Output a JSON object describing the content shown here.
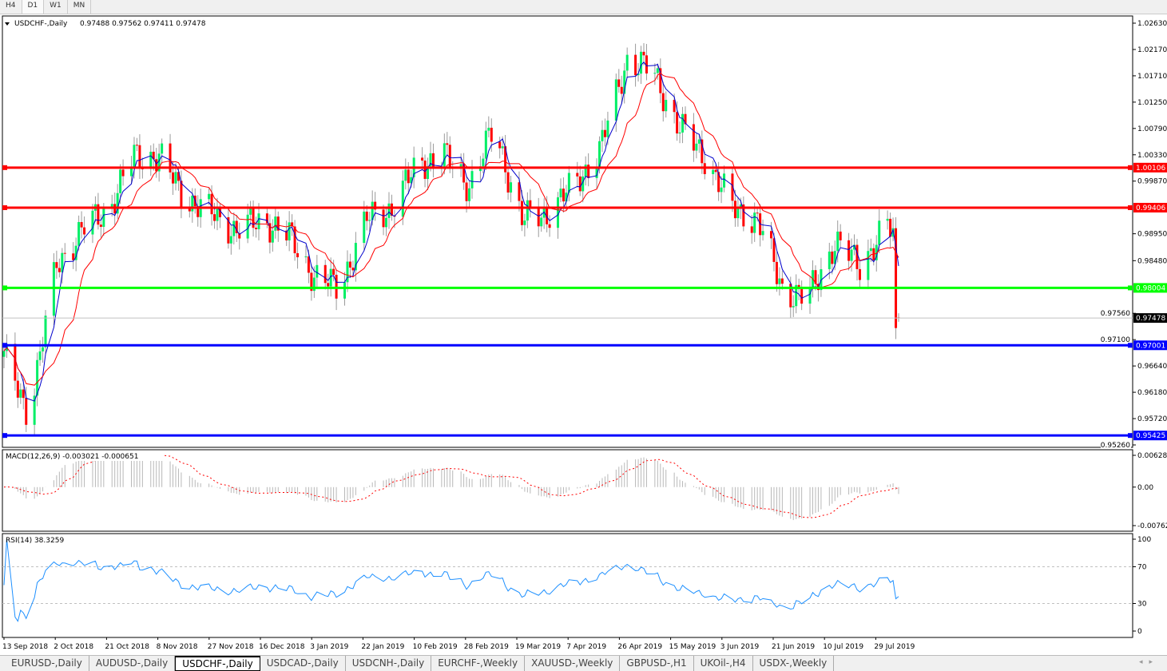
{
  "timeframes": [
    {
      "label": "H4"
    },
    {
      "label": "D1",
      "active": true
    },
    {
      "label": "W1"
    },
    {
      "label": "MN"
    }
  ],
  "header": {
    "symbol": "USDCHF-,Daily",
    "ohlc": "0.97488 0.97562 0.97411 0.97478"
  },
  "tabs": [
    {
      "label": "EURUSD-,Daily"
    },
    {
      "label": "AUDUSD-,Daily"
    },
    {
      "label": "USDCHF-,Daily",
      "active": true
    },
    {
      "label": "USDCAD-,Daily"
    },
    {
      "label": "USDCNH-,Daily"
    },
    {
      "label": "EURCHF-,Weekly"
    },
    {
      "label": "XAUUSD-,Weekly"
    },
    {
      "label": "GBPUSD-,H1"
    },
    {
      "label": "UKOil-,H4"
    },
    {
      "label": "USDX-,Weekly"
    }
  ],
  "chart_data": {
    "type": "candlestick",
    "symbol": "USDCHF-,Daily",
    "last_candle": {
      "open": 0.97488,
      "high": 0.97562,
      "low": 0.97411,
      "close": 0.97478
    },
    "ylim": [
      0.9526,
      1.0263
    ],
    "y_ticks": [
      "1.02630",
      "1.02170",
      "1.01710",
      "1.01250",
      "1.00790",
      "1.00330",
      "0.99870",
      "0.98950",
      "0.98480",
      "0.97560",
      "0.97100",
      "0.96640",
      "0.96180",
      "0.95720",
      "0.95260"
    ],
    "x_ticks": [
      "13 Sep 2018",
      "2 Oct 2018",
      "21 Oct 2018",
      "8 Nov 2018",
      "27 Nov 2018",
      "16 Dec 2018",
      "3 Jan 2019",
      "22 Jan 2019",
      "10 Feb 2019",
      "28 Feb 2019",
      "19 Mar 2019",
      "7 Apr 2019",
      "26 Apr 2019",
      "15 May 2019",
      "3 Jun 2019",
      "21 Jun 2019",
      "10 Jul 2019",
      "29 Jul 2019"
    ],
    "approx_closes": [
      [
        "2018-09-13",
        0.968
      ],
      [
        "2018-09-22",
        0.958
      ],
      [
        "2018-10-02",
        0.984
      ],
      [
        "2018-10-11",
        0.99
      ],
      [
        "2018-10-21",
        0.994
      ],
      [
        "2018-10-30",
        1.003
      ],
      [
        "2018-11-08",
        1.003
      ],
      [
        "2018-11-17",
        0.996
      ],
      [
        "2018-11-27",
        0.993
      ],
      [
        "2018-12-06",
        0.99
      ],
      [
        "2018-12-16",
        0.992
      ],
      [
        "2018-12-25",
        0.989
      ],
      [
        "2019-01-03",
        0.982
      ],
      [
        "2019-01-12",
        0.98
      ],
      [
        "2019-01-22",
        0.992
      ],
      [
        "2019-01-31",
        0.994
      ],
      [
        "2019-02-10",
        1.002
      ],
      [
        "2019-02-19",
        1.003
      ],
      [
        "2019-02-28",
        0.998
      ],
      [
        "2019-03-09",
        1.008
      ],
      [
        "2019-03-19",
        0.992
      ],
      [
        "2019-03-28",
        0.993
      ],
      [
        "2019-04-07",
        0.998
      ],
      [
        "2019-04-16",
        1.004
      ],
      [
        "2019-04-26",
        1.02
      ],
      [
        "2019-05-05",
        1.018
      ],
      [
        "2019-05-15",
        1.008
      ],
      [
        "2019-05-24",
        1.003
      ],
      [
        "2019-06-03",
        0.994
      ],
      [
        "2019-06-12",
        0.992
      ],
      [
        "2019-06-21",
        0.98
      ],
      [
        "2019-06-30",
        0.978
      ],
      [
        "2019-07-10",
        0.988
      ],
      [
        "2019-07-19",
        0.984
      ],
      [
        "2019-07-29",
        0.991
      ],
      [
        "2019-07-31",
        0.989
      ],
      [
        "2019-08-01",
        0.971
      ],
      [
        "2019-08-02",
        0.97478
      ]
    ],
    "moving_averages": [
      {
        "color": "#0000cc"
      },
      {
        "color": "#ff0000"
      }
    ],
    "horizontal_lines": [
      {
        "price": 1.00106,
        "label": "1.00106",
        "color": "#ff0000"
      },
      {
        "price": 0.99406,
        "label": "0.99406",
        "color": "#ff0000"
      },
      {
        "price": 0.98004,
        "label": "0.98004",
        "color": "#00ff00"
      },
      {
        "price": 0.97001,
        "label": "0.97001",
        "color": "#0000ff"
      },
      {
        "price": 0.95425,
        "label": "0.95425",
        "color": "#0000ff"
      }
    ],
    "current_price": {
      "price": 0.97478,
      "label": "0.97478"
    },
    "colors": {
      "bull": "#00ee66",
      "bear": "#ff0000"
    },
    "macd": {
      "label": "MACD(12,26,9) -0.003021 -0.000651",
      "ylim": [
        -0.00762,
        0.006286
      ],
      "ticks": [
        "0.006286",
        "0.00",
        "-0.00762"
      ]
    },
    "rsi": {
      "label": "RSI(14) 38.3259",
      "ylim": [
        0,
        100
      ],
      "levels": [
        70,
        30
      ],
      "ticks": [
        "100",
        "70",
        "30",
        "0"
      ]
    }
  }
}
